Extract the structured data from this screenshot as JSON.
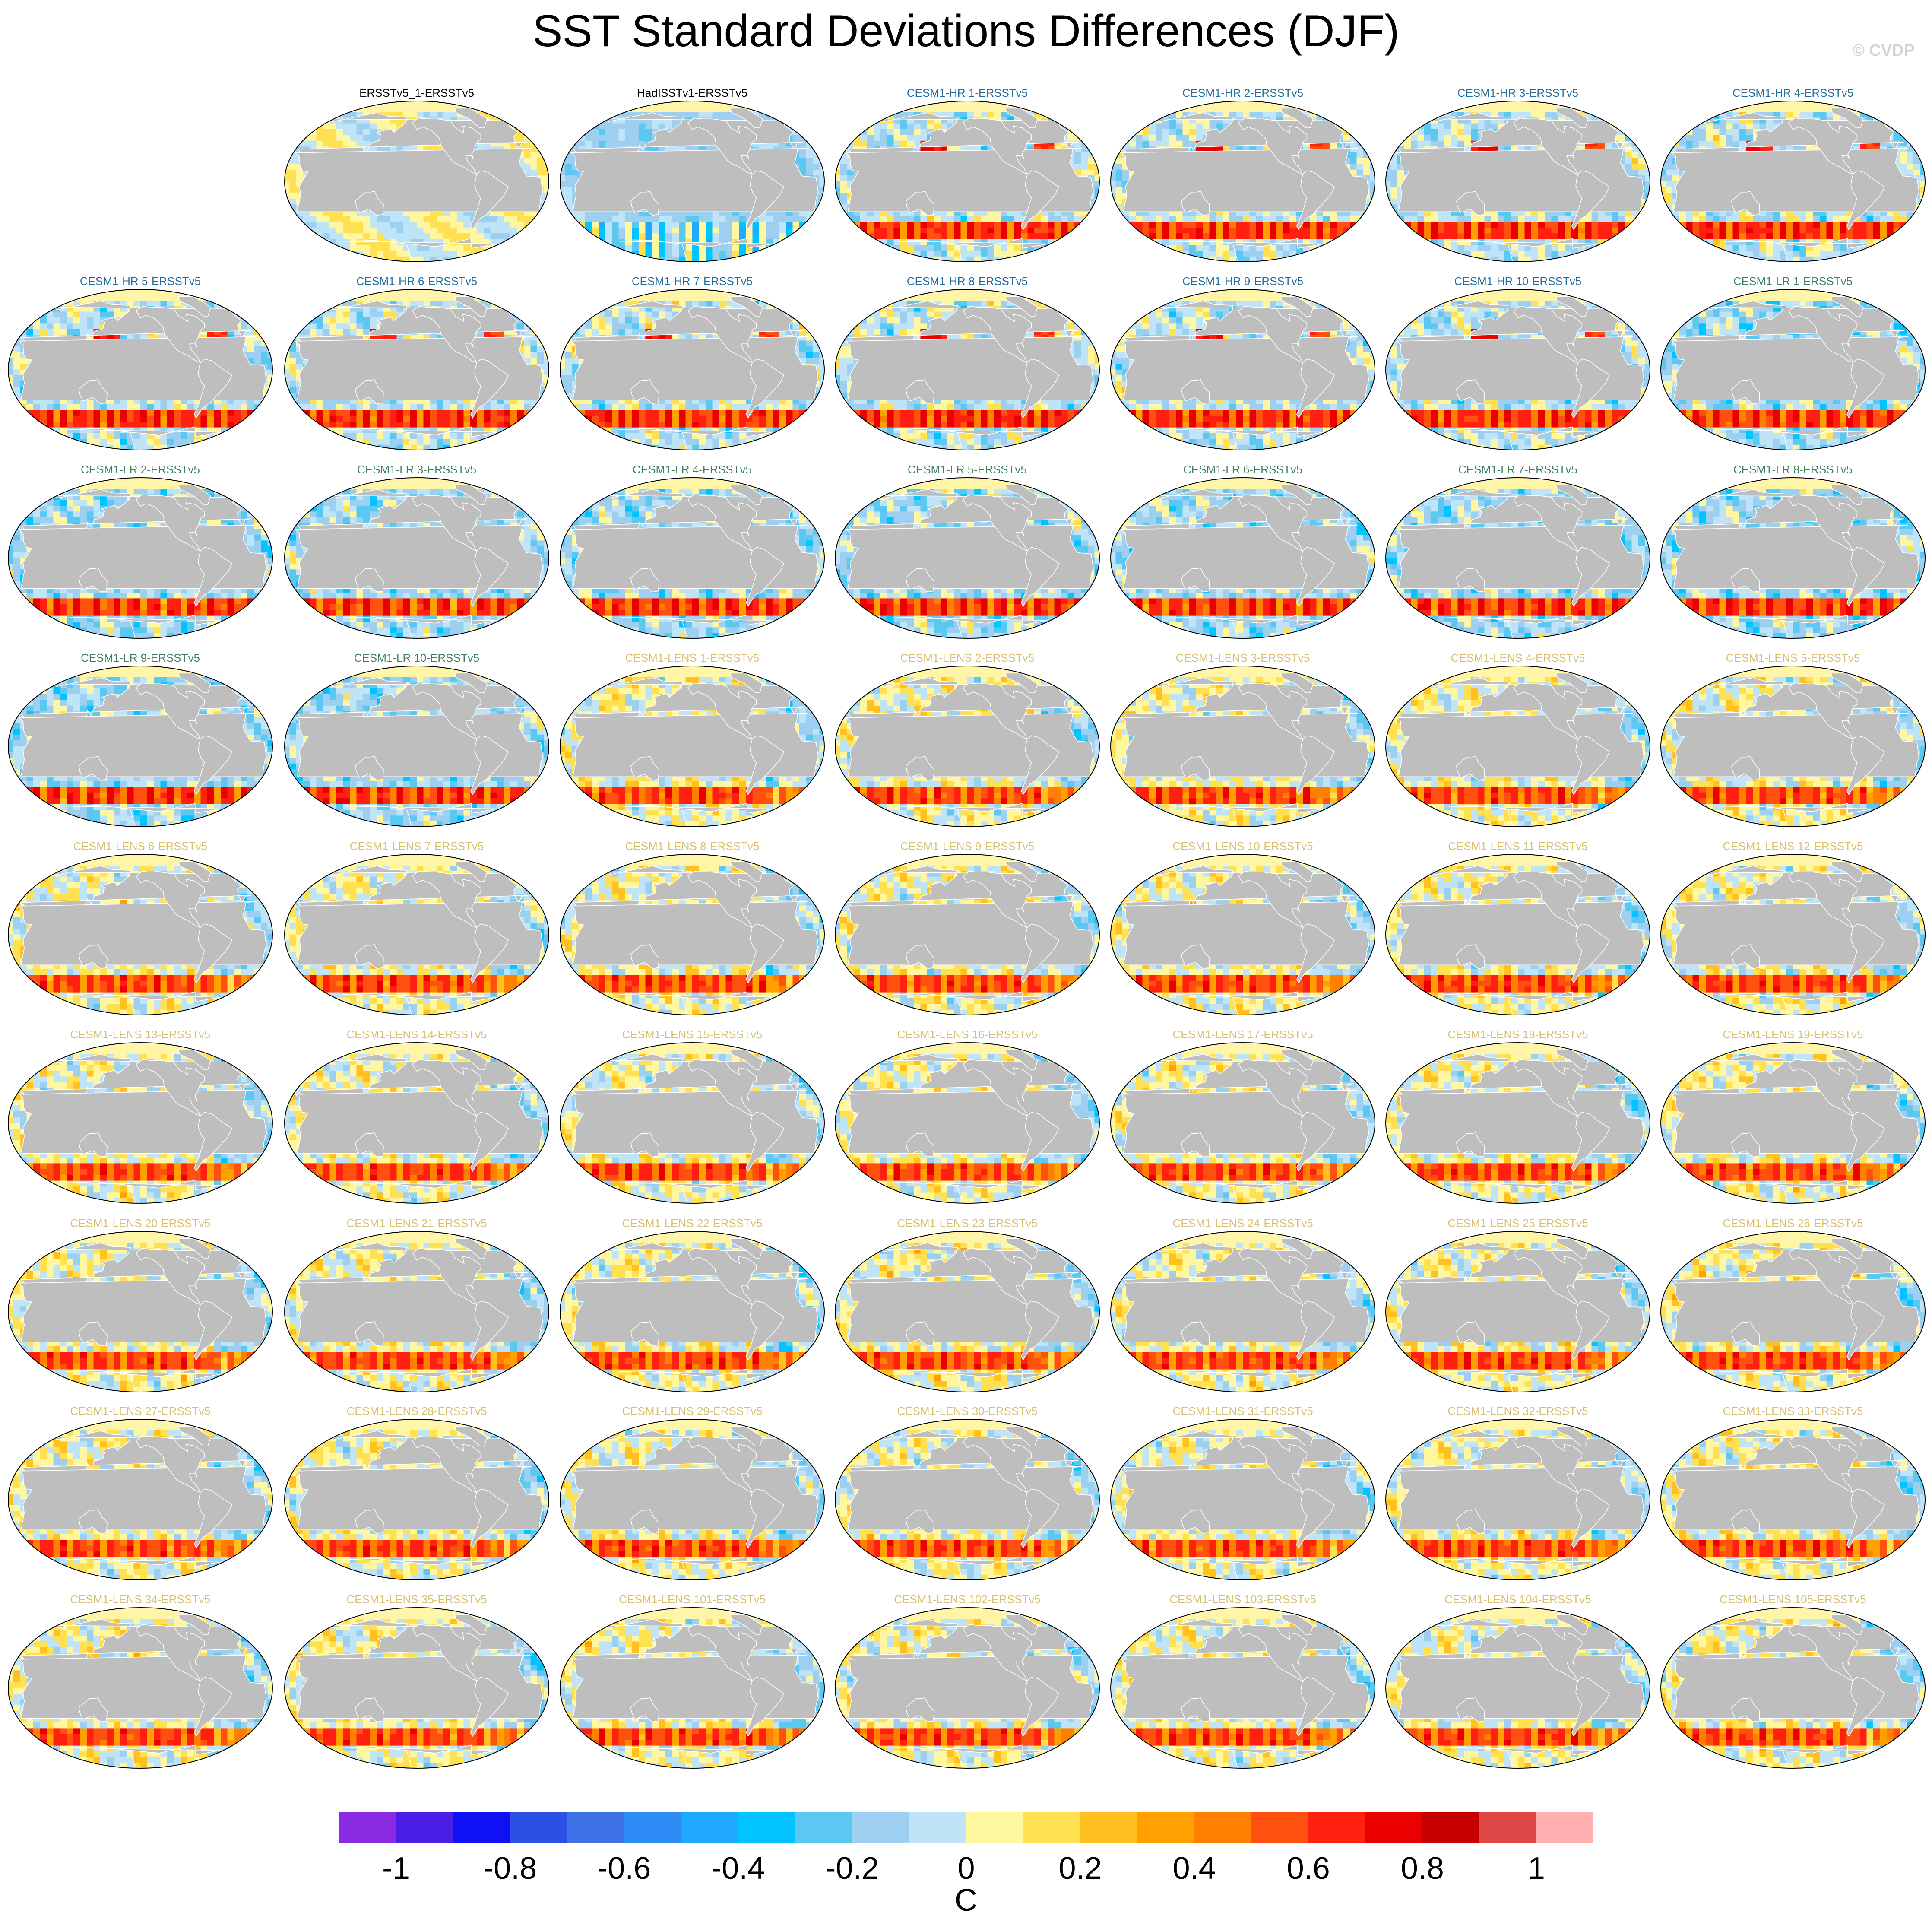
{
  "figure": {
    "title": "SST Standard Deviations Differences (DJF)",
    "watermark": "© CVDP"
  },
  "chart_data": {
    "type": "heatmap",
    "title": "SST Standard Deviations Differences (DJF)",
    "projection": "global map panels (Robinson-like)",
    "panel_count": 62,
    "colorbar": {
      "unit": "C",
      "range": [
        -1.1,
        1.1
      ],
      "bounds": [
        -1.0,
        -0.9,
        -0.8,
        -0.7,
        -0.6,
        -0.5,
        -0.4,
        -0.3,
        -0.2,
        -0.1,
        0.0,
        0.1,
        0.2,
        0.3,
        0.4,
        0.5,
        0.6,
        0.7,
        0.8,
        0.9,
        1.0
      ],
      "tick_values": [
        -1,
        -0.8,
        -0.6,
        -0.4,
        -0.2,
        0,
        0.2,
        0.4,
        0.6,
        0.8,
        1
      ],
      "tick_labels": [
        "-1",
        "-0.8",
        "-0.6",
        "-0.4",
        "-0.2",
        "0",
        "0.2",
        "0.4",
        "0.6",
        "0.8",
        "1"
      ],
      "colors": [
        "#8a2be2",
        "#4b1ee6",
        "#1010f5",
        "#2e4fe6",
        "#3f72e8",
        "#2e8bf5",
        "#1ea8ff",
        "#00c3ff",
        "#5ac8f0",
        "#9ccff0",
        "#bfe3f7",
        "#fff7a0",
        "#ffe050",
        "#ffc020",
        "#ffa000",
        "#ff8000",
        "#ff5010",
        "#ff2010",
        "#ea0000",
        "#c80000",
        "#e04848",
        "#ffb0b0"
      ]
    },
    "panels": [
      {
        "label": "ERSSTv5_1-ERSSTv5",
        "group": "obs",
        "pattern": "weak"
      },
      {
        "label": "HadISSTv1-ERSSTv5",
        "group": "obs",
        "pattern": "hadisst"
      },
      {
        "label": "CESM1-HR 1-ERSSTv5",
        "group": "hr",
        "pattern": "hr"
      },
      {
        "label": "CESM1-HR 2-ERSSTv5",
        "group": "hr",
        "pattern": "hr"
      },
      {
        "label": "CESM1-HR 3-ERSSTv5",
        "group": "hr",
        "pattern": "hr"
      },
      {
        "label": "CESM1-HR 4-ERSSTv5",
        "group": "hr",
        "pattern": "hr"
      },
      {
        "label": "CESM1-HR 5-ERSSTv5",
        "group": "hr",
        "pattern": "hr"
      },
      {
        "label": "CESM1-HR 6-ERSSTv5",
        "group": "hr",
        "pattern": "hr"
      },
      {
        "label": "CESM1-HR 7-ERSSTv5",
        "group": "hr",
        "pattern": "hr"
      },
      {
        "label": "CESM1-HR 8-ERSSTv5",
        "group": "hr",
        "pattern": "hr"
      },
      {
        "label": "CESM1-HR 9-ERSSTv5",
        "group": "hr",
        "pattern": "hr"
      },
      {
        "label": "CESM1-HR 10-ERSSTv5",
        "group": "hr",
        "pattern": "hr"
      },
      {
        "label": "CESM1-LR 1-ERSSTv5",
        "group": "lr",
        "pattern": "lr"
      },
      {
        "label": "CESM1-LR 2-ERSSTv5",
        "group": "lr",
        "pattern": "lr"
      },
      {
        "label": "CESM1-LR 3-ERSSTv5",
        "group": "lr",
        "pattern": "lr"
      },
      {
        "label": "CESM1-LR 4-ERSSTv5",
        "group": "lr",
        "pattern": "lr"
      },
      {
        "label": "CESM1-LR 5-ERSSTv5",
        "group": "lr",
        "pattern": "lr"
      },
      {
        "label": "CESM1-LR 6-ERSSTv5",
        "group": "lr",
        "pattern": "lr"
      },
      {
        "label": "CESM1-LR 7-ERSSTv5",
        "group": "lr",
        "pattern": "lr"
      },
      {
        "label": "CESM1-LR 8-ERSSTv5",
        "group": "lr",
        "pattern": "lr"
      },
      {
        "label": "CESM1-LR 9-ERSSTv5",
        "group": "lr",
        "pattern": "lr"
      },
      {
        "label": "CESM1-LR 10-ERSSTv5",
        "group": "lr",
        "pattern": "lr"
      },
      {
        "label": "CESM1-LENS 1-ERSSTv5",
        "group": "lens",
        "pattern": "lens"
      },
      {
        "label": "CESM1-LENS 2-ERSSTv5",
        "group": "lens",
        "pattern": "lens"
      },
      {
        "label": "CESM1-LENS 3-ERSSTv5",
        "group": "lens",
        "pattern": "lens"
      },
      {
        "label": "CESM1-LENS 4-ERSSTv5",
        "group": "lens",
        "pattern": "lens"
      },
      {
        "label": "CESM1-LENS 5-ERSSTv5",
        "group": "lens",
        "pattern": "lens"
      },
      {
        "label": "CESM1-LENS 6-ERSSTv5",
        "group": "lens",
        "pattern": "lens"
      },
      {
        "label": "CESM1-LENS 7-ERSSTv5",
        "group": "lens",
        "pattern": "lens"
      },
      {
        "label": "CESM1-LENS 8-ERSSTv5",
        "group": "lens",
        "pattern": "lens"
      },
      {
        "label": "CESM1-LENS 9-ERSSTv5",
        "group": "lens",
        "pattern": "lens"
      },
      {
        "label": "CESM1-LENS 10-ERSSTv5",
        "group": "lens",
        "pattern": "lens"
      },
      {
        "label": "CESM1-LENS 11-ERSSTv5",
        "group": "lens",
        "pattern": "lens"
      },
      {
        "label": "CESM1-LENS 12-ERSSTv5",
        "group": "lens",
        "pattern": "lens"
      },
      {
        "label": "CESM1-LENS 13-ERSSTv5",
        "group": "lens",
        "pattern": "lens"
      },
      {
        "label": "CESM1-LENS 14-ERSSTv5",
        "group": "lens",
        "pattern": "lens"
      },
      {
        "label": "CESM1-LENS 15-ERSSTv5",
        "group": "lens",
        "pattern": "lens"
      },
      {
        "label": "CESM1-LENS 16-ERSSTv5",
        "group": "lens",
        "pattern": "lens"
      },
      {
        "label": "CESM1-LENS 17-ERSSTv5",
        "group": "lens",
        "pattern": "lens"
      },
      {
        "label": "CESM1-LENS 18-ERSSTv5",
        "group": "lens",
        "pattern": "lens"
      },
      {
        "label": "CESM1-LENS 19-ERSSTv5",
        "group": "lens",
        "pattern": "lens"
      },
      {
        "label": "CESM1-LENS 20-ERSSTv5",
        "group": "lens",
        "pattern": "lens"
      },
      {
        "label": "CESM1-LENS 21-ERSSTv5",
        "group": "lens",
        "pattern": "lens"
      },
      {
        "label": "CESM1-LENS 22-ERSSTv5",
        "group": "lens",
        "pattern": "lens"
      },
      {
        "label": "CESM1-LENS 23-ERSSTv5",
        "group": "lens",
        "pattern": "lens"
      },
      {
        "label": "CESM1-LENS 24-ERSSTv5",
        "group": "lens",
        "pattern": "lens"
      },
      {
        "label": "CESM1-LENS 25-ERSSTv5",
        "group": "lens",
        "pattern": "lens"
      },
      {
        "label": "CESM1-LENS 26-ERSSTv5",
        "group": "lens",
        "pattern": "lens"
      },
      {
        "label": "CESM1-LENS 27-ERSSTv5",
        "group": "lens",
        "pattern": "lens"
      },
      {
        "label": "CESM1-LENS 28-ERSSTv5",
        "group": "lens",
        "pattern": "lens"
      },
      {
        "label": "CESM1-LENS 29-ERSSTv5",
        "group": "lens",
        "pattern": "lens"
      },
      {
        "label": "CESM1-LENS 30-ERSSTv5",
        "group": "lens",
        "pattern": "lens"
      },
      {
        "label": "CESM1-LENS 31-ERSSTv5",
        "group": "lens",
        "pattern": "lens"
      },
      {
        "label": "CESM1-LENS 32-ERSSTv5",
        "group": "lens",
        "pattern": "lens"
      },
      {
        "label": "CESM1-LENS 33-ERSSTv5",
        "group": "lens",
        "pattern": "lens"
      },
      {
        "label": "CESM1-LENS 34-ERSSTv5",
        "group": "lens",
        "pattern": "lens"
      },
      {
        "label": "CESM1-LENS 35-ERSSTv5",
        "group": "lens",
        "pattern": "lens"
      },
      {
        "label": "CESM1-LENS 101-ERSSTv5",
        "group": "lens",
        "pattern": "lens"
      },
      {
        "label": "CESM1-LENS 102-ERSSTv5",
        "group": "lens",
        "pattern": "lens"
      },
      {
        "label": "CESM1-LENS 103-ERSSTv5",
        "group": "lens",
        "pattern": "lens"
      },
      {
        "label": "CESM1-LENS 104-ERSSTv5",
        "group": "lens",
        "pattern": "lens"
      },
      {
        "label": "CESM1-LENS 105-ERSSTv5",
        "group": "lens",
        "pattern": "lens"
      }
    ],
    "label_colors": {
      "obs": "#000000",
      "hr": "#1f6e9e",
      "lr": "#3f7f5e",
      "lens": "#d8c070"
    },
    "land_color": "#bebebe",
    "missing_color": "#ffffff"
  }
}
